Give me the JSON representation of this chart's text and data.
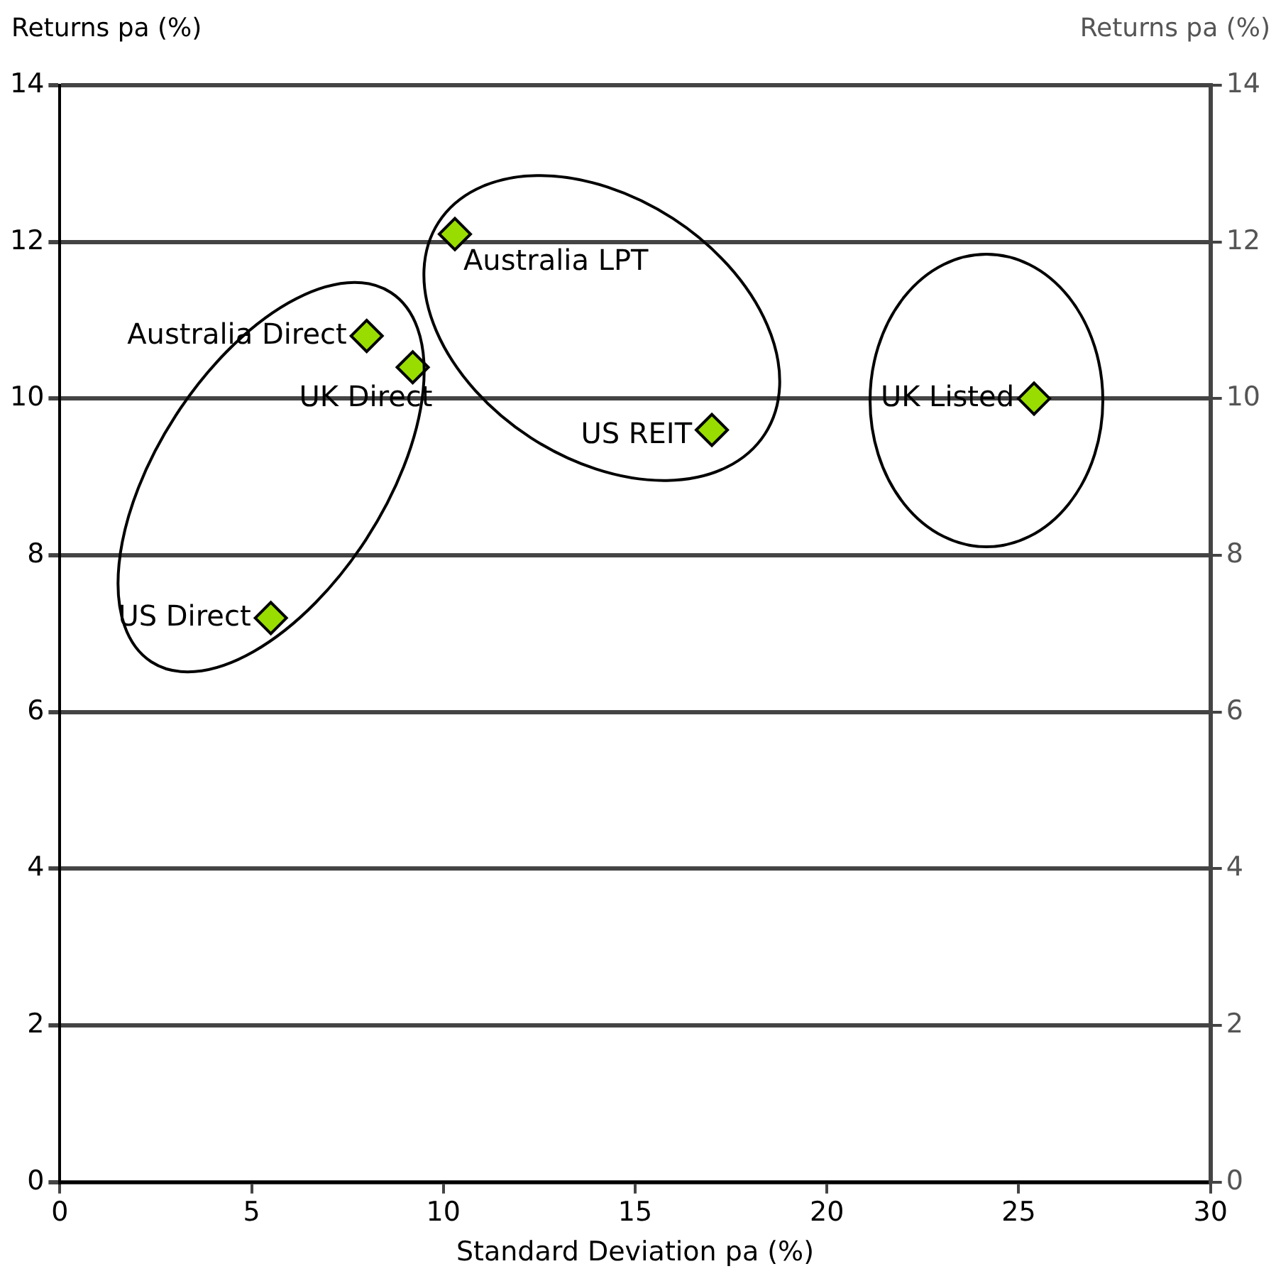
{
  "chart_data": {
    "type": "scatter",
    "xlabel": "Standard Deviation pa (%)",
    "ylabel": "Returns pa (%)",
    "y2label": "Returns pa (%)",
    "x": [
      10.3,
      8.0,
      9.2,
      17.0,
      25.4,
      5.5
    ],
    "series": [
      {
        "color": "#99dd00",
        "values": [
          12.1,
          10.8,
          10.4,
          9.6,
          10.0,
          7.2
        ]
      }
    ],
    "marker": "diamond",
    "xlim": [
      0,
      30
    ],
    "xticks": [
      0,
      5,
      10,
      15,
      20,
      25,
      30
    ],
    "ylim": [
      0,
      14
    ],
    "yticks": [
      0,
      2,
      4,
      6,
      8,
      10,
      12,
      14
    ],
    "y2lim": [
      0,
      14
    ],
    "y2ticks": [
      0,
      2,
      4,
      6,
      8,
      10,
      12,
      14
    ],
    "grid": "y",
    "legend": false,
    "annotations": [
      {
        "text": "Australia LPT",
        "x": 10.3,
        "y": 12.1
      },
      {
        "text": "Australia Direct",
        "x": 8.0,
        "y": 10.8
      },
      {
        "text": "UK Direct",
        "x": 9.2,
        "y": 10.4
      },
      {
        "text": "US REIT",
        "x": 17.0,
        "y": 9.6
      },
      {
        "text": "UK Listed",
        "x": 25.4,
        "y": 10.0
      },
      {
        "text": "US Direct",
        "x": 5.5,
        "y": 7.2
      }
    ]
  }
}
